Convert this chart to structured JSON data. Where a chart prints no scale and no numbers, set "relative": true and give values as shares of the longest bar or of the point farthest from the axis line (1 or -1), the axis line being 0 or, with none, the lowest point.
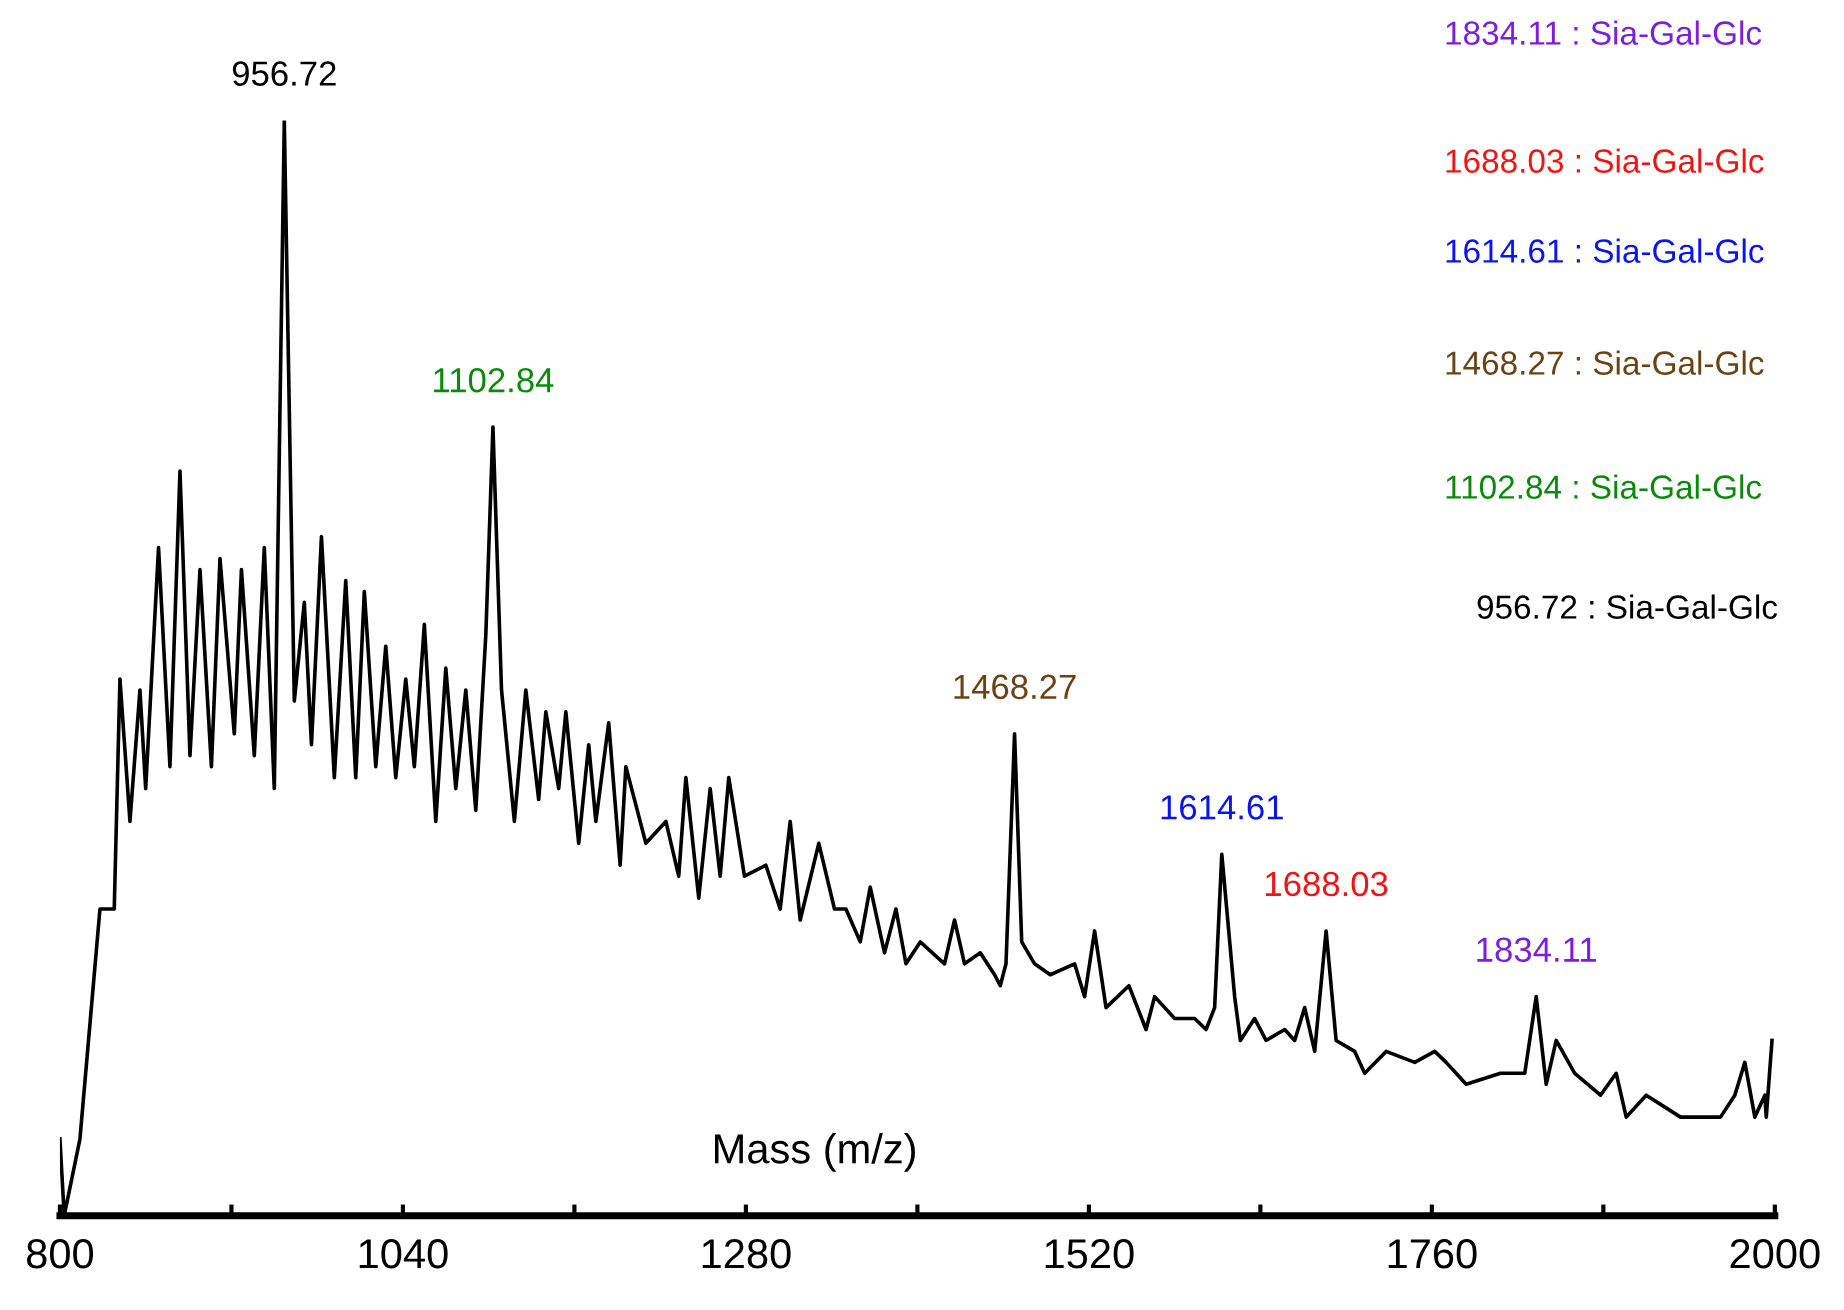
{
  "chart_data": {
    "type": "line",
    "relative": true,
    "xlabel": "Mass (m/z)",
    "xlim": [
      800,
      2000
    ],
    "xticks": [
      800,
      {
        "value": 920,
        "label": null
      },
      1040,
      {
        "value": 1160,
        "label": null
      },
      1280,
      {
        "value": 1400,
        "label": null
      },
      1520,
      {
        "value": 1640,
        "label": null
      },
      1760,
      {
        "value": 1880,
        "label": null
      },
      2000
    ],
    "series": [
      {
        "color": "#000000",
        "x": [
          800,
          803,
          814,
          828,
          838,
          842,
          849,
          856,
          860,
          869,
          877,
          884,
          891,
          898,
          906,
          912,
          922,
          927,
          936,
          943,
          950,
          957,
          964,
          971,
          976,
          983,
          992,
          1000,
          1007,
          1013,
          1021,
          1028,
          1035,
          1042,
          1048,
          1055,
          1063,
          1070,
          1077,
          1084,
          1091,
          1098,
          1103,
          1109,
          1118,
          1126,
          1135,
          1140,
          1149,
          1154,
          1163,
          1170,
          1175,
          1184,
          1192,
          1196,
          1210,
          1224,
          1233,
          1238,
          1247,
          1255,
          1262,
          1268,
          1279,
          1294,
          1304,
          1311,
          1318,
          1331,
          1342,
          1350,
          1360,
          1367,
          1377,
          1385,
          1392,
          1402,
          1419,
          1426,
          1433,
          1444,
          1454,
          1458,
          1462,
          1468,
          1473,
          1482,
          1493,
          1510,
          1517,
          1524,
          1532,
          1548,
          1560,
          1566,
          1580,
          1594,
          1602,
          1608,
          1613,
          1622,
          1626,
          1636,
          1644,
          1657,
          1664,
          1671,
          1678,
          1686,
          1693,
          1706,
          1713,
          1728,
          1748,
          1762,
          1770,
          1784,
          1808,
          1825,
          1833,
          1840,
          1847,
          1860,
          1878,
          1889,
          1896,
          1910,
          1934,
          1948,
          1962,
          1972,
          1979,
          1986,
          1993,
          1994,
          1998
        ],
        "values": [
          0.07,
          0.0,
          0.07,
          0.28,
          0.28,
          0.49,
          0.36,
          0.48,
          0.39,
          0.61,
          0.41,
          0.68,
          0.42,
          0.59,
          0.41,
          0.6,
          0.44,
          0.59,
          0.42,
          0.61,
          0.39,
          1.0,
          0.47,
          0.56,
          0.43,
          0.62,
          0.4,
          0.58,
          0.4,
          0.57,
          0.41,
          0.52,
          0.4,
          0.49,
          0.41,
          0.54,
          0.36,
          0.5,
          0.39,
          0.48,
          0.37,
          0.53,
          0.72,
          0.48,
          0.36,
          0.48,
          0.38,
          0.46,
          0.39,
          0.46,
          0.34,
          0.43,
          0.36,
          0.45,
          0.32,
          0.41,
          0.34,
          0.36,
          0.31,
          0.4,
          0.29,
          0.39,
          0.31,
          0.4,
          0.31,
          0.32,
          0.28,
          0.36,
          0.27,
          0.34,
          0.28,
          0.28,
          0.25,
          0.3,
          0.24,
          0.28,
          0.23,
          0.25,
          0.23,
          0.27,
          0.23,
          0.24,
          0.22,
          0.21,
          0.23,
          0.44,
          0.25,
          0.23,
          0.22,
          0.23,
          0.2,
          0.26,
          0.19,
          0.21,
          0.17,
          0.2,
          0.18,
          0.18,
          0.17,
          0.19,
          0.33,
          0.2,
          0.16,
          0.18,
          0.16,
          0.17,
          0.16,
          0.19,
          0.15,
          0.26,
          0.16,
          0.15,
          0.13,
          0.15,
          0.14,
          0.15,
          0.14,
          0.12,
          0.13,
          0.13,
          0.2,
          0.12,
          0.16,
          0.13,
          0.11,
          0.13,
          0.09,
          0.11,
          0.09,
          0.09,
          0.09,
          0.11,
          0.14,
          0.09,
          0.11,
          0.09,
          0.16
        ]
      }
    ],
    "annotations": [
      {
        "text": "956.72",
        "x": 957,
        "y": 1.0
      },
      {
        "text": "1102.84",
        "x": 1103,
        "y": 0.72
      },
      {
        "text": "1468.27",
        "x": 1468,
        "y": 0.44
      },
      {
        "text": "1614.61",
        "x": 1613,
        "y": 0.33
      },
      {
        "text": "1688.03",
        "x": 1686,
        "y": 0.26
      },
      {
        "text": "1834.11",
        "x": 1833,
        "y": 0.2
      },
      "1834.11 : Sia-Gal-Glc",
      "1688.03 : Sia-Gal-Glc",
      "1614.61 : Sia-Gal-Glc",
      "1468.27 : Sia-Gal-Glc",
      "1102.84 : Sia-Gal-Glc",
      "956.72 : Sia-Gal-Glc"
    ]
  }
}
